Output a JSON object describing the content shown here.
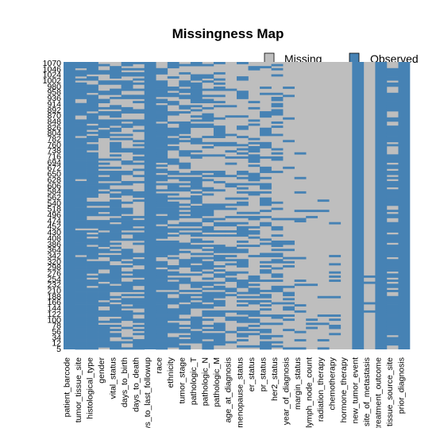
{
  "chart_data": {
    "type": "heatmap",
    "title": "Missingness Map",
    "legend": {
      "placement": "top-right",
      "entries": [
        {
          "label": "Missing",
          "color": "#bebebe"
        },
        {
          "label": "Observed",
          "color": "#4682b4"
        }
      ]
    },
    "y_ticks": [
      "1070",
      "1046",
      "1024",
      "1002",
      "980",
      "958",
      "936",
      "914",
      "892",
      "870",
      "848",
      "826",
      "804",
      "782",
      "760",
      "738",
      "716",
      "694",
      "672",
      "650",
      "628",
      "606",
      "584",
      "562",
      "540",
      "518",
      "496",
      "474",
      "452",
      "430",
      "408",
      "386",
      "364",
      "342",
      "320",
      "298",
      "276",
      "254",
      "232",
      "210",
      "188",
      "166",
      "144",
      "122",
      "100",
      "78",
      "56",
      "34",
      "12",
      "5"
    ],
    "x_ticks": [
      "patient_barcode",
      "tumor_tissue_site",
      "histological_type",
      "gender",
      "vital_status",
      "days_to_birth",
      "days_to_death",
      "days_to_last_followup",
      "race",
      "ethnicity",
      "tumor_stage",
      "pathologic_T",
      "pathologic_N",
      "pathologic_M",
      "age_at_diagnosis",
      "menopause_status",
      "er_status",
      "pr_status",
      "her2_status",
      "year_of_diagnosis",
      "margin_status",
      "lymph_node_count",
      "radiation_therapy",
      "chemotherapy",
      "hormone_therapy",
      "new_tumor_event",
      "site_of_metastasis",
      "treatment_outcome",
      "tissue_source_site",
      "prior_diagnosis"
    ],
    "observed_fraction": [
      1.0,
      0.93,
      0.82,
      0.62,
      0.72,
      0.58,
      0.45,
      1.0,
      0.88,
      0.62,
      0.5,
      0.6,
      0.48,
      0.42,
      0.3,
      0.45,
      0.35,
      0.4,
      0.35,
      0.22,
      0.15,
      0.05,
      0.03,
      0.02,
      0.0,
      1.0,
      0.05,
      1.0,
      0.7,
      1.0
    ],
    "column_colors": {
      "observed": "#4682b4",
      "missing": "#bebebe"
    }
  }
}
